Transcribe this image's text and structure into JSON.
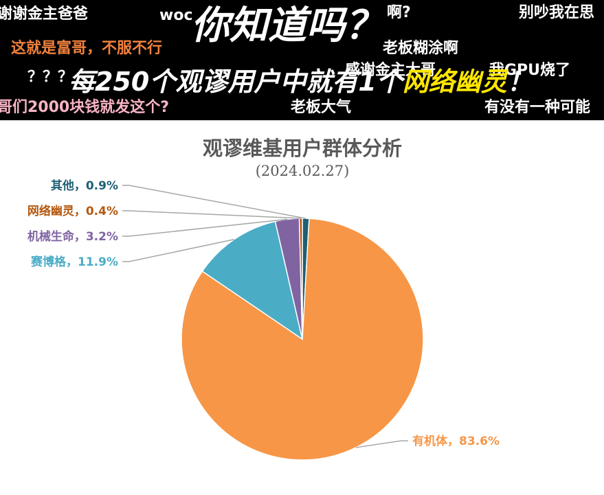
{
  "danmaku": [
    {
      "text": "谢谢金主爸爸",
      "color": "#ffffff"
    },
    {
      "text": "woc",
      "color": "#ffffff"
    },
    {
      "text": "啊?",
      "color": "#ffffff"
    },
    {
      "text": "别吵我在思",
      "color": "#ffffff"
    },
    {
      "text": "这就是富哥，不服不行",
      "color": "#f0813d"
    },
    {
      "text": "老板糊涂啊",
      "color": "#ffffff"
    },
    {
      "text": "？？？",
      "color": "#ffffff"
    },
    {
      "text": "感谢金主大哥",
      "color": "#ffffff"
    },
    {
      "text": "我GPU烧了",
      "color": "#ffffff"
    },
    {
      "text": "哥们2000块钱就发这个?",
      "color": "#f8b4c4"
    },
    {
      "text": "老板大气",
      "color": "#ffffff"
    },
    {
      "text": "有没有一种可能",
      "color": "#ffffff"
    }
  ],
  "headline": {
    "line1": "你知道吗？",
    "line2_prefix": "每250个观谬用户中就有1个",
    "line2_highlight": "网络幽灵",
    "line2_suffix": "！",
    "highlight_color": "#ffe600"
  },
  "chart_data": {
    "type": "pie",
    "title": "观谬维基用户群体分析",
    "subtitle": "(2024.02.27)",
    "slices": [
      {
        "label": "其他，0.9%",
        "name": "其他",
        "value": 0.9,
        "color": "#1f5f73"
      },
      {
        "label": "有机体，83.6%",
        "name": "有机体",
        "value": 83.6,
        "color": "#f79646"
      },
      {
        "label": "赛博格，11.9%",
        "name": "赛博格",
        "value": 11.9,
        "color": "#4bacc6"
      },
      {
        "label": "机械生命，3.2%",
        "name": "机械生命",
        "value": 3.2,
        "color": "#8064a2"
      },
      {
        "label": "网络幽灵，0.4%",
        "name": "网络幽灵",
        "value": 0.4,
        "color": "#b4580f"
      }
    ]
  }
}
